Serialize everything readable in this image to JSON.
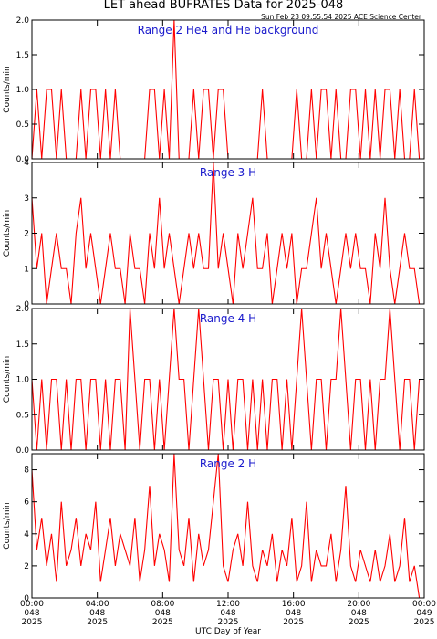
{
  "title": "LET ahead BUFRATES Data for 2025-048",
  "subtitle": "Sun Feb 23 09:55:54 2025 ACE Science Center",
  "xlabel": "UTC Day of Year",
  "chart_data": [
    {
      "type": "line",
      "annotation": "Range 2 He4 and He background",
      "ylabel": "Counts/min",
      "color": "#ff0000",
      "xlim": [
        0,
        24
      ],
      "ylim": [
        0,
        2
      ],
      "yticks": [
        {
          "value": 0,
          "label": "0.0"
        },
        {
          "value": 0.5,
          "label": "0.5"
        },
        {
          "value": 1,
          "label": "1.0"
        },
        {
          "value": 1.5,
          "label": "1.5"
        },
        {
          "value": 2,
          "label": "2.0"
        }
      ],
      "x": [
        0,
        0.3,
        0.6,
        0.9,
        1.2,
        1.5,
        1.8,
        2.1,
        2.4,
        2.7,
        3,
        3.3,
        3.6,
        3.9,
        4.2,
        4.5,
        4.8,
        5.1,
        5.4,
        5.7,
        6,
        6.3,
        6.6,
        6.9,
        7.2,
        7.5,
        7.8,
        8.1,
        8.4,
        8.7,
        9,
        9.3,
        9.6,
        9.9,
        10.2,
        10.5,
        10.8,
        11.1,
        11.4,
        11.7,
        12,
        12.3,
        12.6,
        12.9,
        13.2,
        13.5,
        13.8,
        14.1,
        14.4,
        14.7,
        15,
        15.3,
        15.6,
        15.9,
        16.2,
        16.5,
        16.8,
        17.1,
        17.4,
        17.7,
        18,
        18.3,
        18.6,
        18.9,
        19.2,
        19.5,
        19.8,
        20.1,
        20.4,
        20.7,
        21,
        21.3,
        21.6,
        21.9,
        22.2,
        22.5,
        22.8,
        23.1,
        23.4,
        23.7
      ],
      "values": [
        0,
        1,
        0,
        1,
        1,
        0,
        1,
        0,
        0,
        0,
        1,
        0,
        1,
        1,
        0,
        1,
        0,
        1,
        0,
        0,
        0,
        0,
        0,
        0,
        1,
        1,
        0,
        1,
        0,
        2,
        0,
        0,
        0,
        1,
        0,
        1,
        1,
        0,
        1,
        1,
        0,
        0,
        0,
        0,
        0,
        0,
        0,
        1,
        0,
        0,
        0,
        0,
        0,
        0,
        1,
        0,
        0,
        1,
        0,
        1,
        1,
        0,
        1,
        0,
        0,
        1,
        1,
        0,
        1,
        0,
        1,
        0,
        1,
        1,
        0,
        1,
        0,
        0,
        1,
        0
      ]
    },
    {
      "type": "line",
      "annotation": "Range 3 H",
      "ylabel": "Counts/min",
      "color": "#ff0000",
      "xlim": [
        0,
        24
      ],
      "ylim": [
        0,
        4
      ],
      "yticks": [
        0,
        1,
        2,
        3,
        4
      ],
      "x": [
        0,
        0.3,
        0.6,
        0.9,
        1.2,
        1.5,
        1.8,
        2.1,
        2.4,
        2.7,
        3,
        3.3,
        3.6,
        3.9,
        4.2,
        4.5,
        4.8,
        5.1,
        5.4,
        5.7,
        6,
        6.3,
        6.6,
        6.9,
        7.2,
        7.5,
        7.8,
        8.1,
        8.4,
        8.7,
        9,
        9.3,
        9.6,
        9.9,
        10.2,
        10.5,
        10.8,
        11.1,
        11.4,
        11.7,
        12,
        12.3,
        12.6,
        12.9,
        13.2,
        13.5,
        13.8,
        14.1,
        14.4,
        14.7,
        15,
        15.3,
        15.6,
        15.9,
        16.2,
        16.5,
        16.8,
        17.1,
        17.4,
        17.7,
        18,
        18.3,
        18.6,
        18.9,
        19.2,
        19.5,
        19.8,
        20.1,
        20.4,
        20.7,
        21,
        21.3,
        21.6,
        21.9,
        22.2,
        22.5,
        22.8,
        23.1,
        23.4,
        23.7
      ],
      "values": [
        3,
        1,
        2,
        0,
        1,
        2,
        1,
        1,
        0,
        2,
        3,
        1,
        2,
        1,
        0,
        1,
        2,
        1,
        1,
        0,
        2,
        1,
        1,
        0,
        2,
        1,
        3,
        1,
        2,
        1,
        0,
        1,
        2,
        1,
        2,
        1,
        1,
        4,
        1,
        2,
        1,
        0,
        2,
        1,
        2,
        3,
        1,
        1,
        2,
        0,
        1,
        2,
        1,
        2,
        0,
        1,
        1,
        2,
        3,
        1,
        2,
        1,
        0,
        1,
        2,
        1,
        2,
        1,
        1,
        0,
        2,
        1,
        3,
        1,
        0,
        1,
        2,
        1,
        1,
        0
      ]
    },
    {
      "type": "line",
      "annotation": "Range 4 H",
      "ylabel": "Counts/min",
      "color": "#ff0000",
      "xlim": [
        0,
        24
      ],
      "ylim": [
        0,
        2
      ],
      "yticks": [
        {
          "value": 0,
          "label": "0.0"
        },
        {
          "value": 0.5,
          "label": "0.5"
        },
        {
          "value": 1,
          "label": "1.0"
        },
        {
          "value": 1.5,
          "label": "1.5"
        },
        {
          "value": 2,
          "label": "2.0"
        }
      ],
      "x": [
        0,
        0.3,
        0.6,
        0.9,
        1.2,
        1.5,
        1.8,
        2.1,
        2.4,
        2.7,
        3,
        3.3,
        3.6,
        3.9,
        4.2,
        4.5,
        4.8,
        5.1,
        5.4,
        5.7,
        6,
        6.3,
        6.6,
        6.9,
        7.2,
        7.5,
        7.8,
        8.1,
        8.4,
        8.7,
        9,
        9.3,
        9.6,
        9.9,
        10.2,
        10.5,
        10.8,
        11.1,
        11.4,
        11.7,
        12,
        12.3,
        12.6,
        12.9,
        13.2,
        13.5,
        13.8,
        14.1,
        14.4,
        14.7,
        15,
        15.3,
        15.6,
        15.9,
        16.2,
        16.5,
        16.8,
        17.1,
        17.4,
        17.7,
        18,
        18.3,
        18.6,
        18.9,
        19.2,
        19.5,
        19.8,
        20.1,
        20.4,
        20.7,
        21,
        21.3,
        21.6,
        21.9,
        22.2,
        22.5,
        22.8,
        23.1,
        23.4,
        23.7
      ],
      "values": [
        1,
        0,
        1,
        0,
        1,
        1,
        0,
        1,
        0,
        1,
        1,
        0,
        1,
        1,
        0,
        1,
        0,
        1,
        1,
        0,
        2,
        1,
        0,
        1,
        1,
        0,
        1,
        0,
        1,
        2,
        1,
        1,
        0,
        1,
        2,
        1,
        0,
        1,
        1,
        0,
        1,
        0,
        1,
        1,
        0,
        1,
        0,
        1,
        0,
        1,
        1,
        0,
        1,
        0,
        1,
        2,
        1,
        0,
        1,
        1,
        0,
        1,
        1,
        2,
        1,
        0,
        1,
        1,
        0,
        1,
        0,
        1,
        1,
        2,
        1,
        0,
        1,
        1,
        0,
        1
      ]
    },
    {
      "type": "line",
      "annotation": "Range 2 H",
      "ylabel": "Counts/min",
      "color": "#ff0000",
      "xlim": [
        0,
        24
      ],
      "ylim": [
        0,
        9
      ],
      "yticks": [
        0,
        2,
        4,
        6,
        8
      ],
      "xticks": [
        {
          "value": 0,
          "label": "00:00",
          "day": "048",
          "year": "2025"
        },
        {
          "value": 4,
          "label": "04:00",
          "day": "048",
          "year": "2025"
        },
        {
          "value": 8,
          "label": "08:00",
          "day": "048",
          "year": "2025"
        },
        {
          "value": 12,
          "label": "12:00",
          "day": "048",
          "year": "2025"
        },
        {
          "value": 16,
          "label": "16:00",
          "day": "048",
          "year": "2025"
        },
        {
          "value": 20,
          "label": "20:00",
          "day": "048",
          "year": "2025"
        },
        {
          "value": 24,
          "label": "00:00",
          "day": "049",
          "year": "2025"
        }
      ],
      "x": [
        0,
        0.3,
        0.6,
        0.9,
        1.2,
        1.5,
        1.8,
        2.1,
        2.4,
        2.7,
        3,
        3.3,
        3.6,
        3.9,
        4.2,
        4.5,
        4.8,
        5.1,
        5.4,
        5.7,
        6,
        6.3,
        6.6,
        6.9,
        7.2,
        7.5,
        7.8,
        8.1,
        8.4,
        8.7,
        9,
        9.3,
        9.6,
        9.9,
        10.2,
        10.5,
        10.8,
        11.1,
        11.4,
        11.7,
        12,
        12.3,
        12.6,
        12.9,
        13.2,
        13.5,
        13.8,
        14.1,
        14.4,
        14.7,
        15,
        15.3,
        15.6,
        15.9,
        16.2,
        16.5,
        16.8,
        17.1,
        17.4,
        17.7,
        18,
        18.3,
        18.6,
        18.9,
        19.2,
        19.5,
        19.8,
        20.1,
        20.4,
        20.7,
        21,
        21.3,
        21.6,
        21.9,
        22.2,
        22.5,
        22.8,
        23.1,
        23.4,
        23.7
      ],
      "values": [
        8,
        3,
        5,
        2,
        4,
        1,
        6,
        2,
        3,
        5,
        2,
        4,
        3,
        6,
        1,
        3,
        5,
        2,
        4,
        3,
        2,
        5,
        1,
        3,
        7,
        2,
        4,
        3,
        1,
        9,
        3,
        2,
        5,
        1,
        4,
        2,
        3,
        6,
        9,
        2,
        1,
        3,
        4,
        2,
        6,
        2,
        1,
        3,
        2,
        4,
        1,
        3,
        2,
        5,
        1,
        2,
        6,
        1,
        3,
        2,
        2,
        4,
        1,
        3,
        7,
        2,
        1,
        3,
        2,
        1,
        3,
        1,
        2,
        4,
        1,
        2,
        5,
        1,
        2,
        0
      ]
    }
  ]
}
